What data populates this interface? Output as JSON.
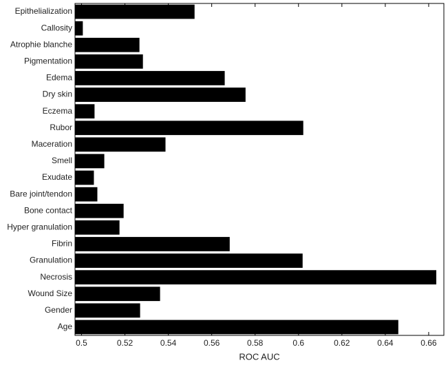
{
  "chart_data": {
    "type": "barh",
    "x_label": "ROC AUC",
    "categories": [
      "Epithelialization",
      "Callosity",
      "Atrophie blanche",
      "Pigmentation",
      "Edema",
      "Dry skin",
      "Eczema",
      "Rubor",
      "Maceration",
      "Smell",
      "Exudate",
      "Bare joint/tendon",
      "Bone contact",
      "Hyper granulation",
      "Fibrin",
      "Granulation",
      "Necrosis",
      "Wound Size",
      "Gender",
      "Age"
    ],
    "values": [
      0.5521,
      0.5006,
      0.5267,
      0.5283,
      0.566,
      0.5756,
      0.506,
      0.6022,
      0.5387,
      0.5105,
      0.5057,
      0.5073,
      0.5194,
      0.5175,
      0.5683,
      0.6019,
      0.6635,
      0.5362,
      0.527,
      0.646
    ],
    "color": "#000000",
    "xlim": [
      0.497,
      0.667
    ],
    "xticks": [
      0.5,
      0.52,
      0.54,
      0.56,
      0.58,
      0.6,
      0.62,
      0.64,
      0.66
    ]
  }
}
